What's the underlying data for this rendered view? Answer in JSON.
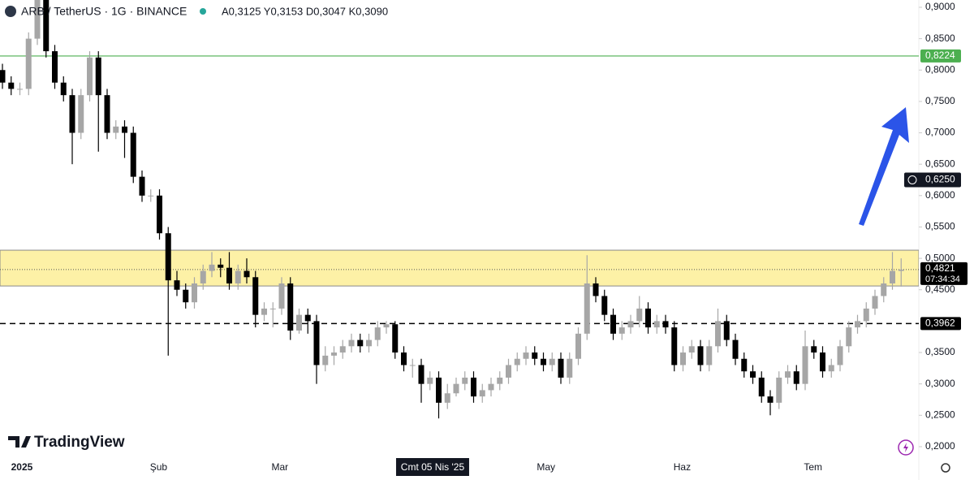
{
  "header": {
    "symbol": "ARB / TetherUS · 1G · BINANCE",
    "ohlc": "A0,3125 Y0,3153 D0,3047 K0,3090"
  },
  "logo": "TradingView",
  "chart_data": {
    "type": "candlestick",
    "open": [
      0.8,
      0.78,
      0.77,
      0.77,
      0.85,
      0.92,
      0.83,
      0.78,
      0.76,
      0.7,
      0.76,
      0.82,
      0.76,
      0.7,
      0.71,
      0.7,
      0.63,
      0.6,
      0.6,
      0.54,
      0.465,
      0.45,
      0.43,
      0.46,
      0.48,
      0.49,
      0.485,
      0.46,
      0.48,
      0.47,
      0.41,
      0.42,
      0.42,
      0.46,
      0.385,
      0.41,
      0.4,
      0.33,
      0.345,
      0.35,
      0.36,
      0.37,
      0.36,
      0.37,
      0.39,
      0.395,
      0.35,
      0.33,
      0.33,
      0.3,
      0.31,
      0.27,
      0.285,
      0.3,
      0.31,
      0.28,
      0.29,
      0.3,
      0.31,
      0.33,
      0.34,
      0.35,
      0.34,
      0.33,
      0.34,
      0.31,
      0.34,
      0.38,
      0.46,
      0.44,
      0.41,
      0.38,
      0.39,
      0.4,
      0.42,
      0.39,
      0.4,
      0.39,
      0.33,
      0.35,
      0.36,
      0.33,
      0.36,
      0.4,
      0.37,
      0.34,
      0.32,
      0.31,
      0.28,
      0.27,
      0.31,
      0.32,
      0.3,
      0.36,
      0.35,
      0.32,
      0.33,
      0.36,
      0.39,
      0.4,
      0.42,
      0.44,
      0.46,
      0.48
    ],
    "high": [
      0.81,
      0.79,
      0.78,
      0.86,
      0.97,
      0.93,
      0.84,
      0.79,
      0.77,
      0.77,
      0.83,
      0.83,
      0.77,
      0.72,
      0.72,
      0.71,
      0.64,
      0.61,
      0.61,
      0.55,
      0.48,
      0.46,
      0.47,
      0.49,
      0.51,
      0.5,
      0.51,
      0.49,
      0.5,
      0.48,
      0.43,
      0.43,
      0.47,
      0.47,
      0.42,
      0.42,
      0.41,
      0.36,
      0.36,
      0.37,
      0.38,
      0.38,
      0.38,
      0.4,
      0.4,
      0.4,
      0.36,
      0.34,
      0.34,
      0.32,
      0.32,
      0.3,
      0.31,
      0.32,
      0.32,
      0.3,
      0.31,
      0.32,
      0.34,
      0.35,
      0.36,
      0.36,
      0.35,
      0.35,
      0.35,
      0.35,
      0.39,
      0.505,
      0.47,
      0.45,
      0.42,
      0.4,
      0.41,
      0.44,
      0.43,
      0.41,
      0.41,
      0.4,
      0.36,
      0.37,
      0.37,
      0.37,
      0.42,
      0.41,
      0.38,
      0.35,
      0.33,
      0.32,
      0.29,
      0.32,
      0.33,
      0.33,
      0.385,
      0.37,
      0.36,
      0.34,
      0.37,
      0.4,
      0.41,
      0.43,
      0.45,
      0.47,
      0.51,
      0.5
    ],
    "low": [
      0.77,
      0.76,
      0.76,
      0.76,
      0.84,
      0.82,
      0.77,
      0.75,
      0.65,
      0.69,
      0.75,
      0.67,
      0.69,
      0.69,
      0.66,
      0.62,
      0.59,
      0.59,
      0.53,
      0.345,
      0.44,
      0.42,
      0.42,
      0.45,
      0.47,
      0.47,
      0.45,
      0.45,
      0.46,
      0.39,
      0.4,
      0.39,
      0.41,
      0.37,
      0.38,
      0.38,
      0.3,
      0.32,
      0.33,
      0.34,
      0.35,
      0.35,
      0.35,
      0.36,
      0.38,
      0.34,
      0.32,
      0.31,
      0.27,
      0.29,
      0.245,
      0.26,
      0.28,
      0.29,
      0.27,
      0.27,
      0.28,
      0.29,
      0.3,
      0.32,
      0.33,
      0.33,
      0.32,
      0.32,
      0.3,
      0.3,
      0.33,
      0.37,
      0.43,
      0.4,
      0.37,
      0.37,
      0.38,
      0.39,
      0.38,
      0.38,
      0.38,
      0.32,
      0.32,
      0.34,
      0.32,
      0.32,
      0.35,
      0.36,
      0.33,
      0.31,
      0.3,
      0.27,
      0.25,
      0.26,
      0.3,
      0.29,
      0.29,
      0.34,
      0.31,
      0.31,
      0.32,
      0.35,
      0.38,
      0.39,
      0.41,
      0.43,
      0.45,
      0.455
    ],
    "close": [
      0.78,
      0.77,
      0.77,
      0.85,
      0.92,
      0.83,
      0.78,
      0.76,
      0.7,
      0.76,
      0.82,
      0.76,
      0.7,
      0.71,
      0.7,
      0.63,
      0.6,
      0.6,
      0.54,
      0.465,
      0.45,
      0.43,
      0.46,
      0.48,
      0.49,
      0.485,
      0.46,
      0.48,
      0.47,
      0.41,
      0.42,
      0.42,
      0.46,
      0.385,
      0.41,
      0.4,
      0.33,
      0.345,
      0.35,
      0.36,
      0.37,
      0.36,
      0.37,
      0.39,
      0.395,
      0.35,
      0.33,
      0.33,
      0.3,
      0.31,
      0.27,
      0.285,
      0.3,
      0.31,
      0.28,
      0.29,
      0.3,
      0.31,
      0.33,
      0.34,
      0.35,
      0.34,
      0.33,
      0.34,
      0.31,
      0.34,
      0.38,
      0.46,
      0.44,
      0.41,
      0.38,
      0.39,
      0.4,
      0.42,
      0.39,
      0.4,
      0.39,
      0.33,
      0.35,
      0.36,
      0.33,
      0.36,
      0.4,
      0.37,
      0.34,
      0.32,
      0.31,
      0.28,
      0.27,
      0.31,
      0.32,
      0.3,
      0.36,
      0.35,
      0.32,
      0.33,
      0.36,
      0.39,
      0.4,
      0.42,
      0.44,
      0.46,
      0.48,
      0.4821
    ],
    "up_color": "#a6a6a6",
    "down_color": "#000000",
    "ylim": [
      0.187,
      0.9116
    ],
    "yticks": [
      {
        "value": 0.9,
        "label": "0,9000"
      },
      {
        "value": 0.85,
        "label": "0,8500"
      },
      {
        "value": 0.8,
        "label": "0,8000"
      },
      {
        "value": 0.75,
        "label": "0,7500"
      },
      {
        "value": 0.7,
        "label": "0,7000"
      },
      {
        "value": 0.65,
        "label": "0,6500"
      },
      {
        "value": 0.6,
        "label": "0,6000"
      },
      {
        "value": 0.55,
        "label": "0,5500"
      },
      {
        "value": 0.5,
        "label": "0,5000"
      },
      {
        "value": 0.45,
        "label": "0,4500"
      },
      {
        "value": 0.35,
        "label": "0,3500"
      },
      {
        "value": 0.3,
        "label": "0,3000"
      },
      {
        "value": 0.25,
        "label": "0,2500"
      },
      {
        "value": 0.2,
        "label": "0,2000"
      }
    ],
    "xticks": [
      {
        "value": 2.23,
        "label": "2025"
      },
      {
        "value": 17.9,
        "label": "Şub"
      },
      {
        "value": 31.8,
        "label": "Mar"
      },
      {
        "value": 62.3,
        "label": "May"
      },
      {
        "value": 77.9,
        "label": "Haz"
      },
      {
        "value": 92.9,
        "label": "Tem"
      }
    ],
    "crosshair_x": {
      "value": 49.3,
      "label": "Cmt 05 Nis '25"
    },
    "crosshair_price": {
      "value": 0.625,
      "label": "0,6250"
    },
    "lines": [
      {
        "value": 0.8224,
        "label": "0,8224",
        "color": "#4caf50",
        "style": "solid"
      },
      {
        "value": 0.3962,
        "label": "0,3962",
        "color": "#000000",
        "style": "dashed"
      }
    ],
    "zone": [
      0.456,
      0.513
    ],
    "zone_color": "#fdf1a6",
    "last_price": {
      "value": 0.4821,
      "label": "0,4821",
      "countdown": "07:34:34"
    }
  }
}
